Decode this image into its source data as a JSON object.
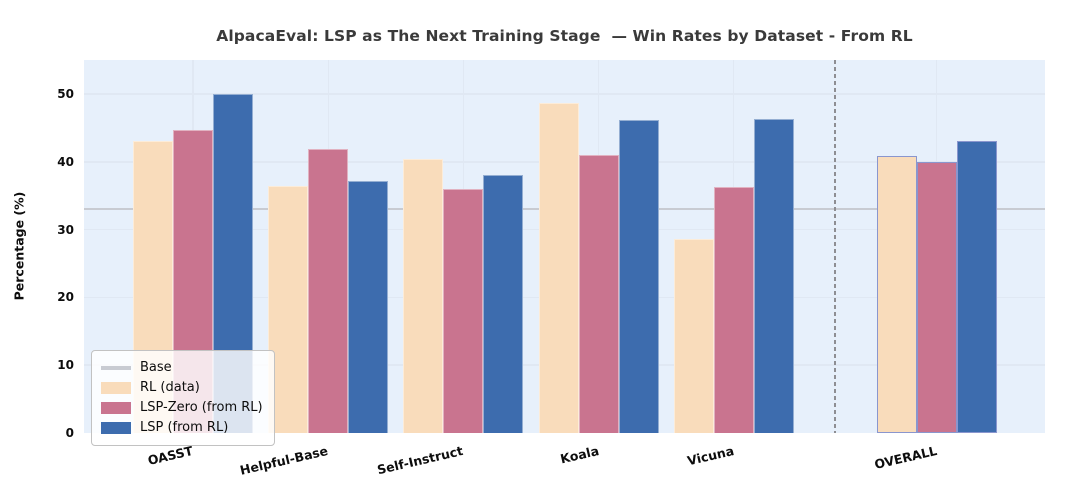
{
  "chart_data": {
    "type": "bar",
    "title": "AlpacaEval: LSP as The Next Training Stage  — Win Rates by Dataset - From RL",
    "ylabel": "Percentage (%)",
    "xlabel": "",
    "categories": [
      "OASST",
      "Helpful-Base",
      "Self-Instruct",
      "Koala",
      "Vicuna",
      "OVERALL"
    ],
    "x_positions": [
      0,
      1,
      2,
      3,
      4,
      5.5
    ],
    "separator_x": 4.75,
    "highlighted_category": "OVERALL",
    "highlight_edge_color": "#8a96ce",
    "series": [
      {
        "name": "RL (data)",
        "color": "#f9dcbb",
        "values": [
          43.1,
          36.4,
          40.4,
          48.6,
          28.6,
          40.8
        ]
      },
      {
        "name": "LSP-Zero (from RL)",
        "color": "#c9748f",
        "values": [
          44.7,
          41.9,
          36.0,
          41.0,
          36.2,
          40.0
        ]
      },
      {
        "name": "LSP (from RL)",
        "color": "#3d6cae",
        "values": [
          50.0,
          37.2,
          38.0,
          46.2,
          46.3,
          43.1
        ]
      }
    ],
    "baseline": {
      "label": "Base",
      "value": 33.0,
      "color": "#c8cbd2"
    },
    "yticks": [
      0,
      10,
      20,
      30,
      40,
      50
    ],
    "ylim": [
      0,
      55
    ],
    "grid": true,
    "legend_position": "lower-left",
    "plot_background": "#e7f0fb",
    "title_color": "#3a3a3a"
  }
}
